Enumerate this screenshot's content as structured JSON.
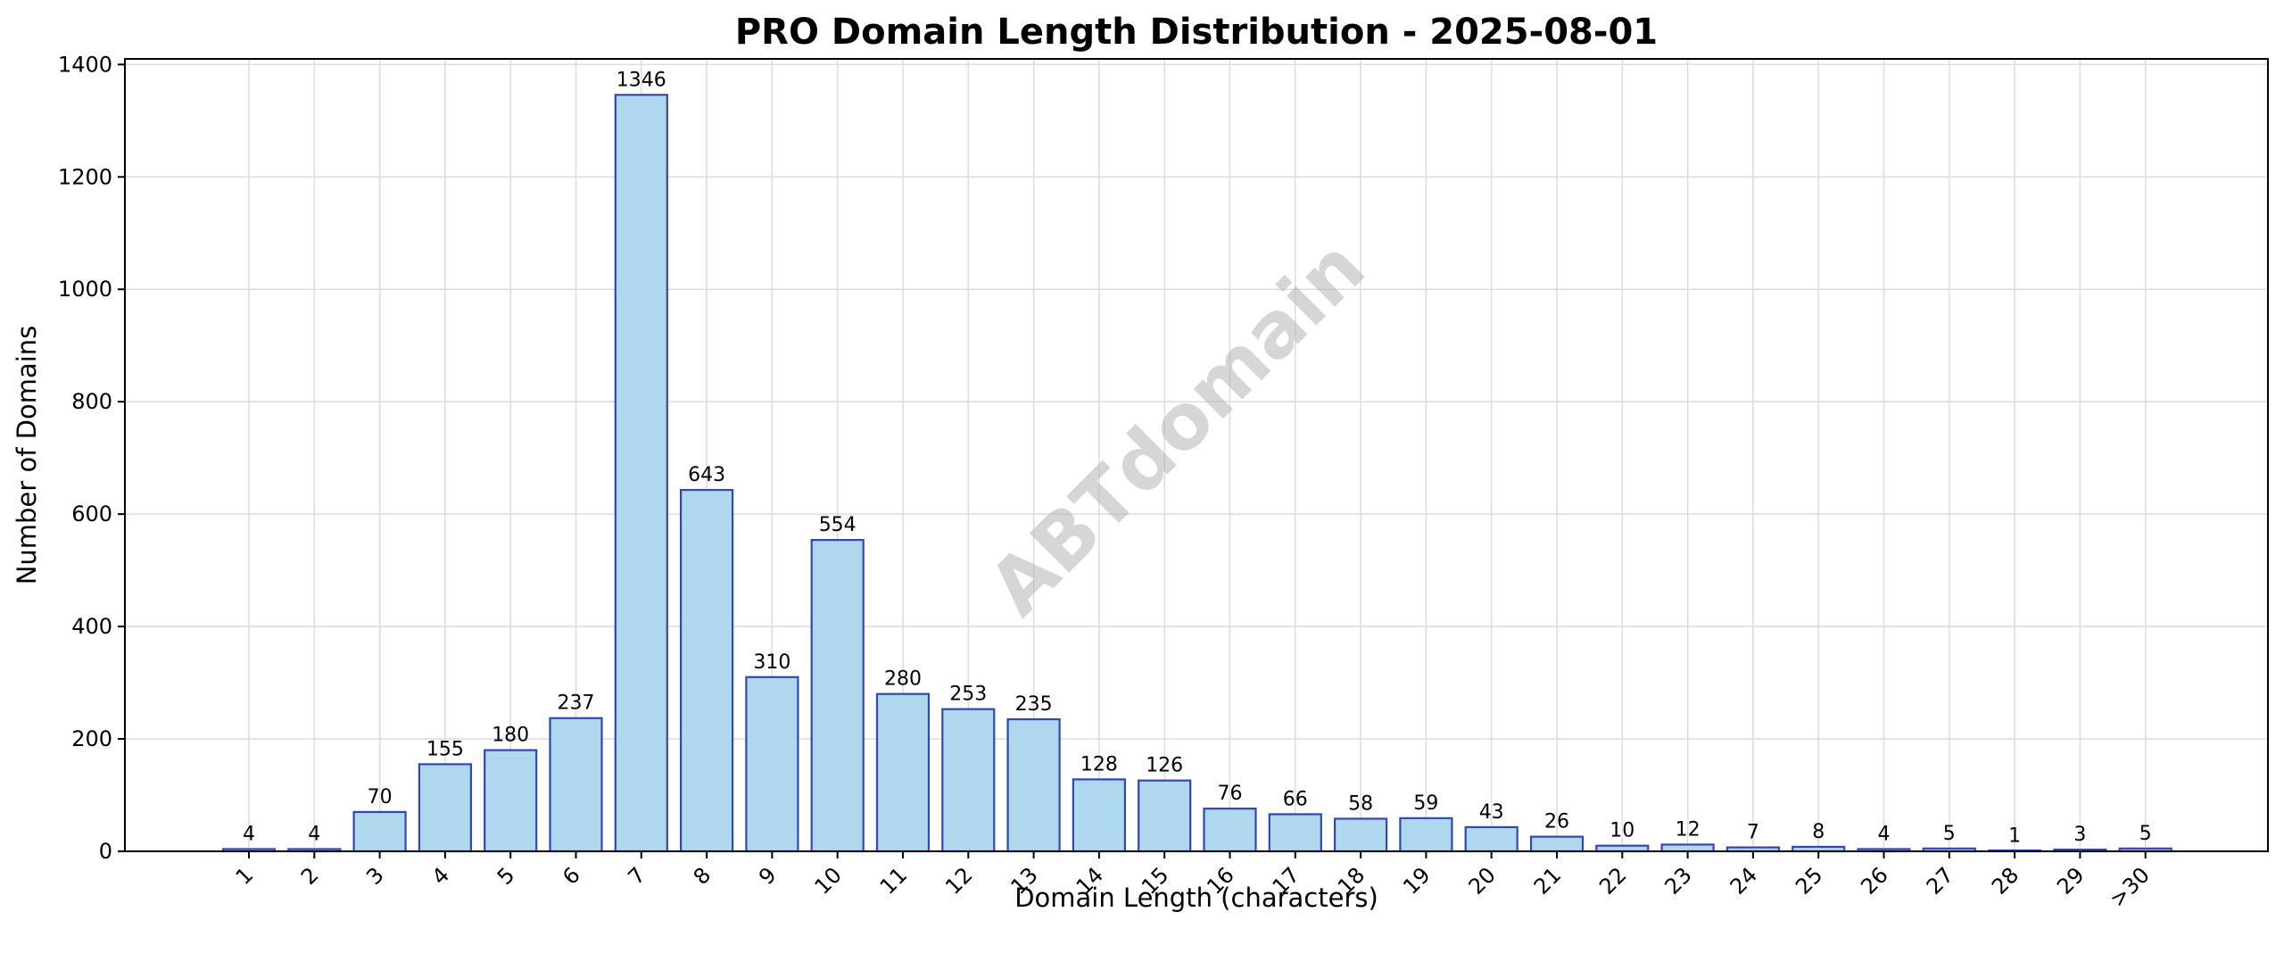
{
  "chart_data": {
    "type": "bar",
    "title": "PRO Domain Length Distribution - 2025-08-01",
    "xlabel": "Domain Length (characters)",
    "ylabel": "Number of Domains",
    "categories": [
      "1",
      "2",
      "3",
      "4",
      "5",
      "6",
      "7",
      "8",
      "9",
      "10",
      "11",
      "12",
      "13",
      "14",
      "15",
      "16",
      "17",
      "18",
      "19",
      "20",
      "21",
      "22",
      "23",
      "24",
      "25",
      "26",
      "27",
      "28",
      "29",
      ">30"
    ],
    "values": [
      4,
      4,
      70,
      155,
      180,
      237,
      1346,
      643,
      310,
      554,
      280,
      253,
      235,
      128,
      126,
      76,
      66,
      58,
      59,
      43,
      26,
      10,
      12,
      7,
      8,
      4,
      5,
      1,
      3,
      5
    ],
    "value_labels": [
      "4",
      "4",
      "70",
      "155",
      "180",
      "237",
      "1346",
      "643",
      "310",
      "554",
      "280",
      "253",
      "235",
      "128",
      "126",
      "76",
      "66",
      "58",
      "59",
      "43",
      "26",
      "10",
      "12",
      "7",
      "8",
      "4",
      "5",
      "1",
      "3",
      "5"
    ],
    "ylim": [
      0,
      1410
    ],
    "yticks": [
      0,
      200,
      400,
      600,
      800,
      1000,
      1200,
      1400
    ],
    "ytick_labels": [
      "0",
      "200",
      "400",
      "600",
      "800",
      "1000",
      "1200",
      "1400"
    ],
    "grid": true,
    "watermark": "ABTdomain",
    "bar_color": "#add8ee",
    "bar_edge_color": "#3446b0",
    "last_bar_color": "#c9c2dc"
  }
}
